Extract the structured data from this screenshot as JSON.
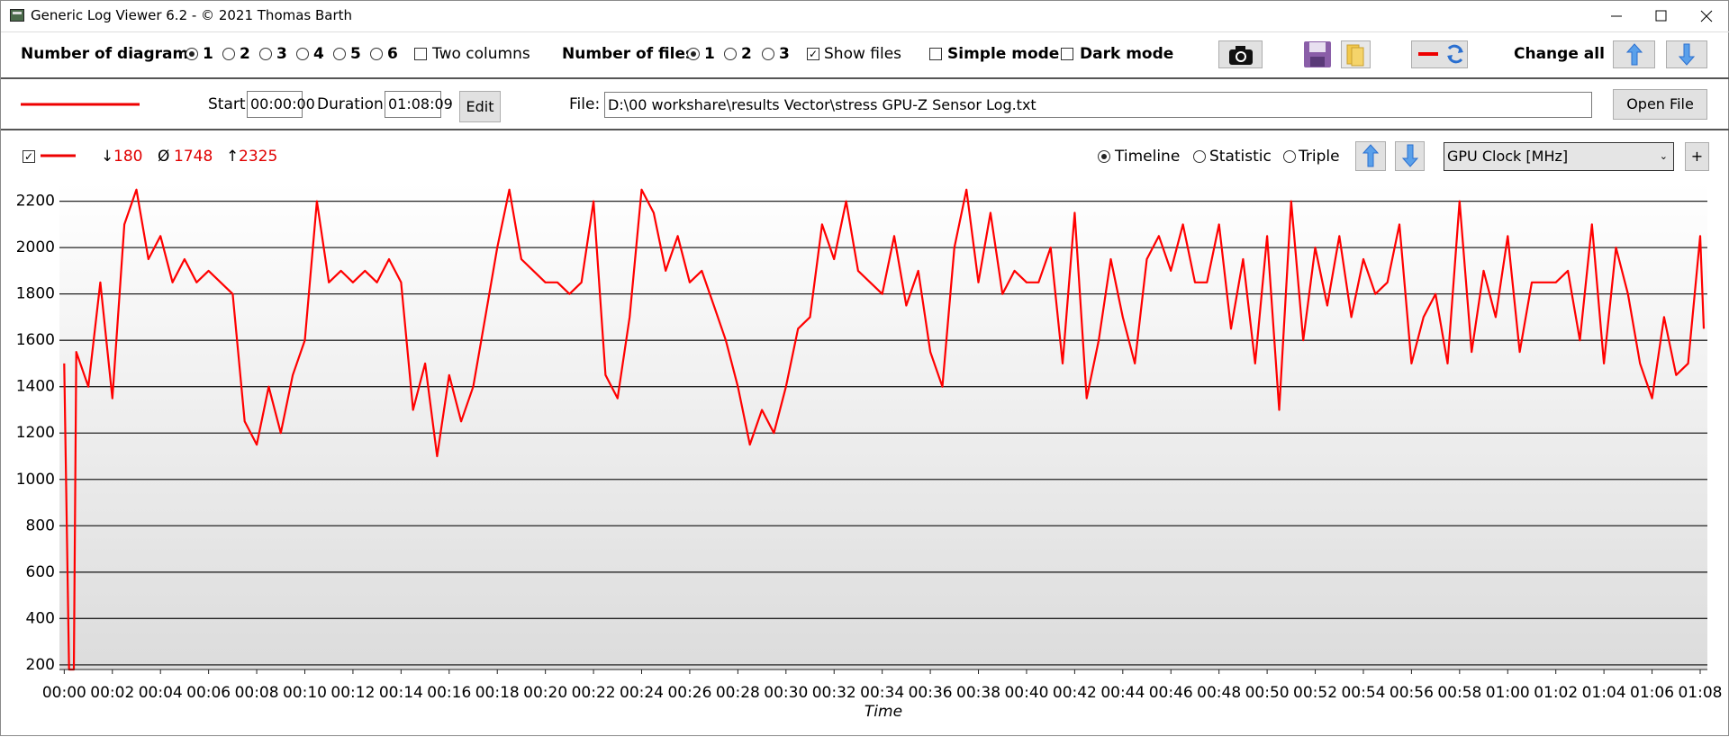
{
  "window": {
    "title": "Generic Log Viewer 6.2 - © 2021 Thomas Barth"
  },
  "toolbar": {
    "diagrams_label": "Number of diagrams",
    "diagram_options": [
      "1",
      "2",
      "3",
      "4",
      "5",
      "6"
    ],
    "two_columns": "Two columns",
    "files_label": "Number of files",
    "file_options": [
      "1",
      "2",
      "3"
    ],
    "show_files": "Show files",
    "simple_mode": "Simple mode",
    "dark_mode": "Dark mode",
    "change_all": "Change all"
  },
  "file_bar": {
    "start_label": "Start:",
    "start": "00:00:00",
    "duration_label": "Duration:",
    "duration": "01:08:09",
    "edit": "Edit",
    "file_label": "File:",
    "file_path": "D:\\00 workshare\\results Vector\\stress GPU-Z Sensor Log.txt",
    "open_file": "Open File"
  },
  "diagram_bar": {
    "min_symbol": "↓",
    "min": 180,
    "avg_symbol": "Ø",
    "avg": 1748,
    "max_symbol": "↑",
    "max": 2325,
    "modes": [
      "Timeline",
      "Statistic",
      "Triple"
    ],
    "sensor": "GPU Clock [MHz]",
    "add": "+"
  },
  "chart_data": {
    "type": "line",
    "x_label": "Time",
    "grid": true,
    "x": [
      0,
      0.2,
      0.4,
      0.5,
      1,
      1.5,
      2,
      2.5,
      3,
      3.5,
      4,
      4.5,
      5,
      5.5,
      6,
      6.5,
      7,
      7.5,
      8,
      8.5,
      9,
      9.5,
      10,
      10.5,
      11,
      11.5,
      12,
      12.5,
      13,
      13.5,
      14,
      14.5,
      15,
      15.5,
      16,
      16.5,
      17,
      17.5,
      18,
      18.5,
      19,
      19.5,
      20,
      20.5,
      21,
      21.5,
      22,
      22.5,
      23,
      23.5,
      24,
      24.5,
      25,
      25.5,
      26,
      26.5,
      27,
      27.5,
      28,
      28.5,
      29,
      29.5,
      30,
      30.5,
      31,
      31.5,
      32,
      32.5,
      33,
      33.5,
      34,
      34.5,
      35,
      35.5,
      36,
      36.5,
      37,
      37.5,
      38,
      38.5,
      39,
      39.5,
      40,
      40.5,
      41,
      41.5,
      42,
      42.5,
      43,
      43.5,
      44,
      44.5,
      45,
      45.5,
      46,
      46.5,
      47,
      47.5,
      48,
      48.5,
      49,
      49.5,
      50,
      50.5,
      51,
      51.5,
      52,
      52.5,
      53,
      53.5,
      54,
      54.5,
      55,
      55.5,
      56,
      56.5,
      57,
      57.5,
      58,
      58.5,
      59,
      59.5,
      60,
      60.5,
      61,
      61.5,
      62,
      62.5,
      63,
      63.5,
      64,
      64.5,
      65,
      65.5,
      66,
      66.5,
      67,
      67.5,
      68,
      68.15
    ],
    "series": [
      {
        "color": "#ff0000",
        "values": [
          1500,
          180,
          180,
          1550,
          1400,
          1850,
          1350,
          2100,
          2250,
          1950,
          2050,
          1850,
          1950,
          1850,
          1900,
          1850,
          1800,
          1250,
          1150,
          1400,
          1200,
          1450,
          1600,
          2200,
          1850,
          1900,
          1850,
          1900,
          1850,
          1950,
          1850,
          1300,
          1500,
          1100,
          1450,
          1250,
          1400,
          1700,
          2000,
          2250,
          1950,
          1900,
          1850,
          1850,
          1800,
          1850,
          2200,
          1450,
          1350,
          1700,
          2250,
          2150,
          1900,
          2050,
          1850,
          1900,
          1750,
          1600,
          1400,
          1150,
          1300,
          1200,
          1400,
          1650,
          1700,
          2100,
          1950,
          2200,
          1900,
          1850,
          1800,
          2050,
          1750,
          1900,
          1550,
          1400,
          2000,
          2250,
          1850,
          2150,
          1800,
          1900,
          1850,
          1850,
          2000,
          1500,
          2150,
          1350,
          1600,
          1950,
          1700,
          1500,
          1950,
          2050,
          1900,
          2100,
          1850,
          1850,
          2100,
          1650,
          1950,
          1500,
          2050,
          1300,
          2200,
          1600,
          2000,
          1750,
          2050,
          1700,
          1950,
          1800,
          1850,
          2100,
          1500,
          1700,
          1800,
          1500,
          2200,
          1550,
          1900,
          1700,
          2050,
          1550,
          1850,
          1850,
          1850,
          1900,
          1600,
          2100,
          1500,
          2000,
          1800,
          1500,
          1350,
          1700,
          1450,
          1500,
          2050,
          1650
        ]
      }
    ],
    "xlim": [
      -0.2,
      68.3
    ],
    "xticks": [
      {
        "value": 0,
        "label": "00:00"
      },
      {
        "value": 2,
        "label": "00:02"
      },
      {
        "value": 4,
        "label": "00:04"
      },
      {
        "value": 6,
        "label": "00:06"
      },
      {
        "value": 8,
        "label": "00:08"
      },
      {
        "value": 10,
        "label": "00:10"
      },
      {
        "value": 12,
        "label": "00:12"
      },
      {
        "value": 14,
        "label": "00:14"
      },
      {
        "value": 16,
        "label": "00:16"
      },
      {
        "value": 18,
        "label": "00:18"
      },
      {
        "value": 20,
        "label": "00:20"
      },
      {
        "value": 22,
        "label": "00:22"
      },
      {
        "value": 24,
        "label": "00:24"
      },
      {
        "value": 26,
        "label": "00:26"
      },
      {
        "value": 28,
        "label": "00:28"
      },
      {
        "value": 30,
        "label": "00:30"
      },
      {
        "value": 32,
        "label": "00:32"
      },
      {
        "value": 34,
        "label": "00:34"
      },
      {
        "value": 36,
        "label": "00:36"
      },
      {
        "value": 38,
        "label": "00:38"
      },
      {
        "value": 40,
        "label": "00:40"
      },
      {
        "value": 42,
        "label": "00:42"
      },
      {
        "value": 44,
        "label": "00:44"
      },
      {
        "value": 46,
        "label": "00:46"
      },
      {
        "value": 48,
        "label": "00:48"
      },
      {
        "value": 50,
        "label": "00:50"
      },
      {
        "value": 52,
        "label": "00:52"
      },
      {
        "value": 54,
        "label": "00:54"
      },
      {
        "value": 56,
        "label": "00:56"
      },
      {
        "value": 58,
        "label": "00:58"
      },
      {
        "value": 60,
        "label": "01:00"
      },
      {
        "value": 62,
        "label": "01:02"
      },
      {
        "value": 64,
        "label": "01:04"
      },
      {
        "value": 66,
        "label": "01:06"
      },
      {
        "value": 68,
        "label": "01:08"
      }
    ],
    "ylim": [
      180,
      2280
    ],
    "yticks": [
      200,
      400,
      600,
      800,
      1000,
      1200,
      1400,
      1600,
      1800,
      2000,
      2200
    ]
  }
}
